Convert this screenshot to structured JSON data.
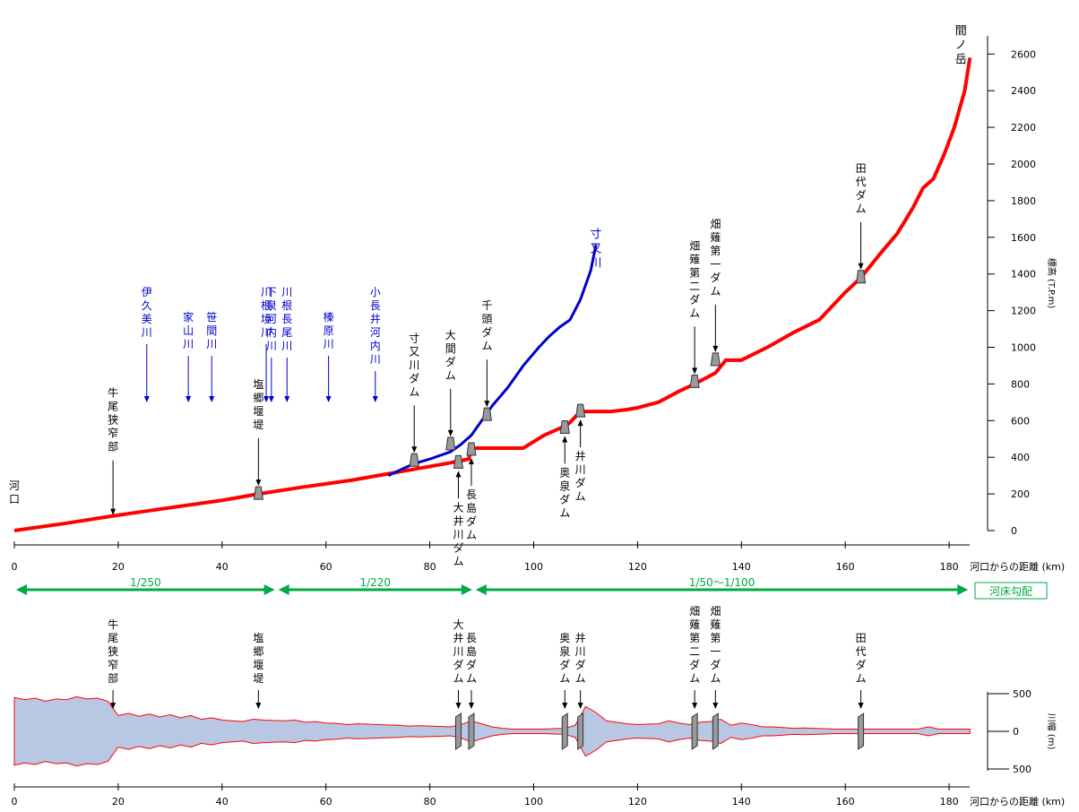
{
  "chart_data": [
    {
      "type": "line",
      "title": "",
      "xlabel": "河口からの距離 (km)",
      "ylabel": "標高 (T.P.m)",
      "xlim": [
        0,
        185
      ],
      "ylim": [
        0,
        2700
      ],
      "x_ticks": [
        0,
        20,
        40,
        60,
        80,
        100,
        120,
        140,
        160,
        180
      ],
      "y_ticks": [
        0,
        200,
        400,
        600,
        800,
        1000,
        1200,
        1400,
        1600,
        1800,
        2000,
        2200,
        2400,
        2600
      ],
      "color_main": "#ff0000",
      "color_sub": "#0000cc",
      "series": [
        {
          "name": "",
          "x": [
            0,
            10,
            19,
            30,
            40,
            47,
            55,
            60,
            65,
            70,
            75,
            80,
            84,
            87.5,
            88,
            95,
            98,
            102,
            106,
            107,
            109,
            115,
            118,
            120,
            124,
            128,
            131,
            133,
            135,
            137,
            140,
            145,
            150,
            155,
            160,
            163,
            165,
            167,
            170,
            173,
            175,
            177,
            179,
            181,
            183,
            184
          ],
          "y": [
            0,
            40,
            80,
            125,
            165,
            200,
            235,
            255,
            275,
            300,
            325,
            350,
            370,
            390,
            450,
            450,
            450,
            520,
            570,
            590,
            650,
            650,
            660,
            670,
            700,
            760,
            800,
            830,
            860,
            930,
            930,
            1000,
            1080,
            1150,
            1300,
            1380,
            1450,
            1520,
            1620,
            1760,
            1870,
            1920,
            2050,
            2200,
            2400,
            2580
          ]
        },
        {
          "name": "寸又川",
          "x": [
            72,
            75,
            77,
            80,
            84,
            86,
            88,
            90,
            92,
            95,
            98,
            101,
            103,
            105,
            107,
            109,
            111,
            112
          ],
          "y": [
            300,
            340,
            365,
            390,
            430,
            470,
            520,
            600,
            680,
            780,
            900,
            1000,
            1060,
            1110,
            1150,
            1260,
            1420,
            1560
          ]
        }
      ],
      "river_labels": [
        {
          "text": "寸又川",
          "x": 112.5,
          "y": 1640
        },
        {
          "text": "間ノ岳",
          "x": 184,
          "y": 2750
        }
      ],
      "structures": [
        {
          "name": "河口",
          "x": 0,
          "elev": 0,
          "label_side": "above",
          "marker": false
        },
        {
          "name": "牛尾狭窄部",
          "x": 19,
          "elev": 80,
          "label_side": "above",
          "marker": false
        },
        {
          "name": "塩郷堰堤",
          "x": 47,
          "elev": 200,
          "label_side": "above",
          "marker": true
        },
        {
          "name": "寸又川ダム",
          "x": 77,
          "elev": 380,
          "label_side": "above",
          "marker": true
        },
        {
          "name": "大間ダム",
          "x": 84,
          "elev": 470,
          "label_side": "above",
          "marker": true
        },
        {
          "name": "千頭ダム",
          "x": 91,
          "elev": 630,
          "label_side": "above",
          "marker": true
        },
        {
          "name": "大井川ダム",
          "x": 85.5,
          "elev": 370,
          "label_side": "below",
          "marker": true
        },
        {
          "name": "長島ダム",
          "x": 88,
          "elev": 440,
          "label_side": "below",
          "marker": true
        },
        {
          "name": "奥泉ダム",
          "x": 106,
          "elev": 560,
          "label_side": "below",
          "marker": true
        },
        {
          "name": "井川ダム",
          "x": 109,
          "elev": 650,
          "label_side": "below",
          "marker": true
        },
        {
          "name": "畑薙第二ダム",
          "x": 131,
          "elev": 810,
          "label_side": "above",
          "marker": true
        },
        {
          "name": "畑薙第一ダム",
          "x": 135,
          "elev": 930,
          "label_side": "above",
          "marker": true
        },
        {
          "name": "田代ダム",
          "x": 163,
          "elev": 1380,
          "label_side": "above",
          "marker": true
        }
      ],
      "tributaries": [
        {
          "name": "伊久美川",
          "x": 25.5
        },
        {
          "name": "家山川",
          "x": 33.5
        },
        {
          "name": "笹間川",
          "x": 38
        },
        {
          "name": "川根境川",
          "x": 48.5
        },
        {
          "name": "下泉河内川",
          "x": 49.5
        },
        {
          "name": "川根長尾川",
          "x": 52.5
        },
        {
          "name": "榛原川",
          "x": 60.5
        },
        {
          "name": "小長井河内川",
          "x": 69.5
        }
      ],
      "gradients": [
        {
          "label": "1/250",
          "from": 0,
          "to": 50.5
        },
        {
          "label": "1/220",
          "from": 50.5,
          "to": 88.5
        },
        {
          "label": "1/50～1/100",
          "from": 88.5,
          "to": 184
        }
      ],
      "gradient_title": "河床勾配",
      "gradient_color": "#00aa44"
    },
    {
      "type": "area",
      "title": "",
      "xlabel": "河口からの距離 (km)",
      "ylabel": "川幅 (m)",
      "xlim": [
        0,
        185
      ],
      "ylim": [
        -500,
        500
      ],
      "x_ticks": [
        0,
        20,
        40,
        60,
        80,
        100,
        120,
        140,
        160,
        180
      ],
      "y_tick_labels": [
        "500",
        "0",
        "500"
      ],
      "fill_color": "#b8c8e4",
      "outline_color": "#ff0000",
      "x": [
        0,
        2,
        4,
        6,
        8,
        10,
        12,
        14,
        16,
        18,
        20,
        22,
        24,
        26,
        28,
        30,
        32,
        34,
        36,
        38,
        40,
        42,
        44,
        46,
        48,
        50,
        52,
        54,
        56,
        58,
        60,
        62,
        64,
        66,
        68,
        70,
        72,
        74,
        76,
        78,
        80,
        82,
        84,
        86,
        88,
        90,
        92,
        94,
        96,
        98,
        100,
        102,
        104,
        106,
        108,
        110,
        112,
        114,
        116,
        118,
        120,
        122,
        124,
        126,
        128,
        130,
        132,
        134,
        136,
        138,
        140,
        142,
        144,
        146,
        148,
        150,
        152,
        154,
        156,
        158,
        160,
        162,
        164,
        166,
        168,
        170,
        172,
        174,
        176,
        178,
        180,
        182,
        184
      ],
      "width_half": [
        450,
        420,
        440,
        400,
        430,
        420,
        460,
        430,
        440,
        400,
        210,
        240,
        200,
        230,
        190,
        220,
        180,
        210,
        160,
        180,
        150,
        140,
        130,
        160,
        150,
        145,
        140,
        150,
        120,
        130,
        110,
        105,
        90,
        100,
        95,
        90,
        85,
        80,
        70,
        75,
        70,
        65,
        60,
        90,
        140,
        100,
        60,
        40,
        30,
        30,
        30,
        30,
        35,
        40,
        80,
        330,
        250,
        140,
        120,
        100,
        90,
        95,
        100,
        140,
        110,
        90,
        120,
        130,
        160,
        80,
        110,
        90,
        60,
        60,
        50,
        40,
        45,
        40,
        35,
        30,
        30,
        30,
        30,
        30,
        30,
        30,
        30,
        30,
        60,
        30,
        30,
        30,
        30
      ]
    }
  ],
  "bottom_structures": [
    {
      "name": "牛尾狭窄部",
      "x": 19,
      "marker": false
    },
    {
      "name": "塩郷堰堤",
      "x": 47,
      "marker": false
    },
    {
      "name": "大井川ダム",
      "x": 85.5,
      "marker": true
    },
    {
      "name": "長島ダム",
      "x": 88,
      "marker": true
    },
    {
      "name": "奥泉ダム",
      "x": 106,
      "marker": true
    },
    {
      "name": "井川ダム",
      "x": 109,
      "marker": true
    },
    {
      "name": "畑薙第二ダム",
      "x": 131,
      "marker": true
    },
    {
      "name": "畑薙第一ダム",
      "x": 135,
      "marker": true
    },
    {
      "name": "田代ダム",
      "x": 163,
      "marker": true
    }
  ]
}
